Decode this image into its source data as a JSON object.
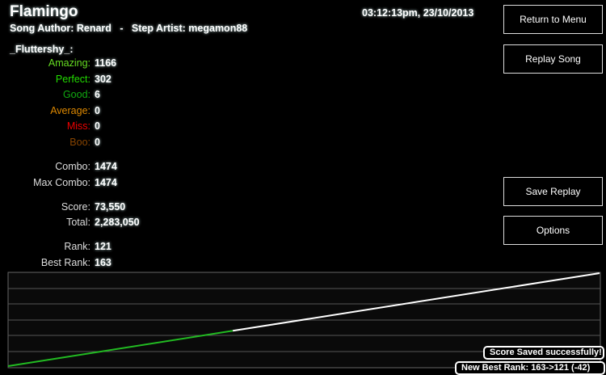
{
  "song": {
    "title": "Flamingo",
    "subtitle": "Song Author: Renard   -   Step Artist: megamon88",
    "datetime": "03:12:13pm, 23/10/2013"
  },
  "player": "_Fluttershy_:",
  "judgements": [
    {
      "label": "Amazing:",
      "value": "1166",
      "color": "#66dd22"
    },
    {
      "label": "Perfect:",
      "value": "302",
      "color": "#22dd00"
    },
    {
      "label": "Good:",
      "value": "6",
      "color": "#11aa11"
    },
    {
      "label": "Average:",
      "value": "0",
      "color": "#dd8800"
    },
    {
      "label": "Miss:",
      "value": "0",
      "color": "#ee0000"
    },
    {
      "label": "Boo:",
      "value": "0",
      "color": "#884400"
    }
  ],
  "stats": [
    {
      "label": "Combo:",
      "value": "1474"
    },
    {
      "label": "Max Combo:",
      "value": "1474"
    },
    {
      "label": "Score:",
      "value": "73,550"
    },
    {
      "label": "Total:",
      "value": "2,283,050"
    },
    {
      "label": "Rank:",
      "value": "121"
    },
    {
      "label": "Best Rank:",
      "value": "163"
    }
  ],
  "buttons": {
    "return": "Return to Menu",
    "replay": "Replay Song",
    "save_replay": "Save Replay",
    "options": "Options"
  },
  "graph": {
    "green_fraction": 0.38,
    "colors": {
      "played": "#22bb22",
      "rest": "#ffffff"
    }
  },
  "toasts": {
    "saved": "Score Saved successfully!",
    "best": "New Best Rank: 163->121 (-42)"
  }
}
